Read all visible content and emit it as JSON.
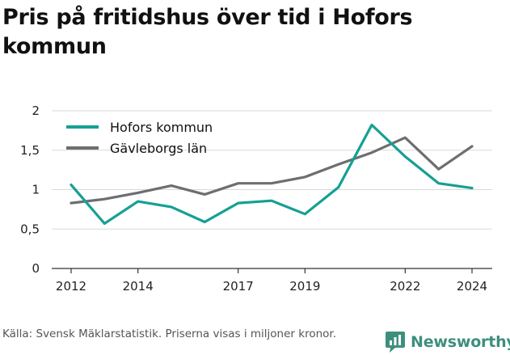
{
  "title": "Pris på fritidshus över tid i Hofors kommun",
  "source": "Källa: Svensk Mäklarstatistik. Priserna visas i miljoner kronor.",
  "brand": "Newsworthy",
  "colors": {
    "hofors": "#15a093",
    "gavleborg": "#6d6e71",
    "grid": "#d9d9d9",
    "axis": "#333333",
    "brand": "#3d8f7c"
  },
  "chart_data": {
    "type": "line",
    "x": [
      2012,
      2013,
      2014,
      2015,
      2016,
      2017,
      2018,
      2019,
      2020,
      2021,
      2022,
      2023,
      2024
    ],
    "xticks": [
      2012,
      2014,
      2017,
      2019,
      2022,
      2024
    ],
    "yticks": [
      0,
      0.5,
      1,
      1.5,
      2
    ],
    "ytick_labels": [
      "0",
      "0,5",
      "1",
      "1,5",
      "2"
    ],
    "ylim": [
      0,
      2
    ],
    "xlim": [
      2012,
      2024
    ],
    "grid": "horizontal",
    "legend_position": "top-left",
    "series": [
      {
        "name": "Hofors kommun",
        "color": "#15a093",
        "values": [
          1.06,
          0.57,
          0.85,
          0.78,
          0.59,
          0.83,
          0.86,
          0.69,
          1.03,
          1.82,
          1.42,
          1.08,
          1.02
        ]
      },
      {
        "name": "Gävleborgs län",
        "color": "#6d6e71",
        "values": [
          0.83,
          0.88,
          0.96,
          1.05,
          0.94,
          1.08,
          1.08,
          1.16,
          1.32,
          1.47,
          1.66,
          1.26,
          1.55
        ]
      }
    ]
  }
}
